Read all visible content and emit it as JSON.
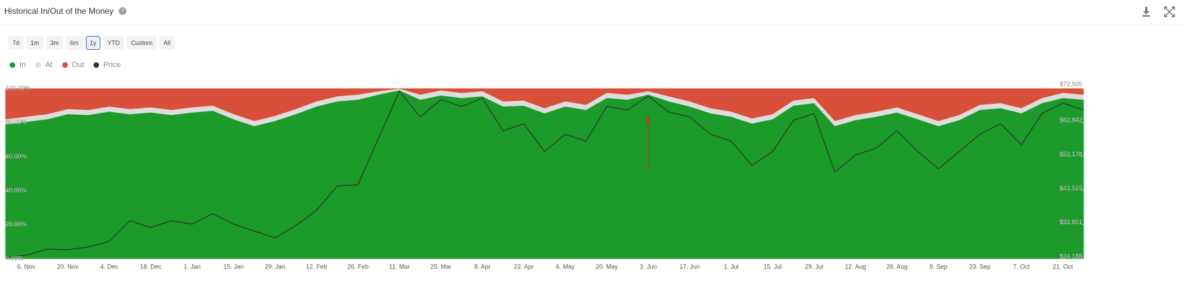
{
  "header": {
    "title": "Historical In/Out of the Money"
  },
  "range_buttons": [
    "7d",
    "1m",
    "3m",
    "6m",
    "1y",
    "YTD",
    "Custom",
    "All"
  ],
  "selected_range": "1y",
  "chart_data": {
    "type": "stacked_area",
    "categories": [
      null,
      "6. Nov",
      null,
      "20. Nov",
      null,
      "4. Dec",
      null,
      "18. Dec",
      null,
      "1. Jan",
      null,
      "15. Jan",
      null,
      "29. Jan",
      null,
      "12. Feb",
      null,
      "26. Feb",
      null,
      "11. Mar",
      null,
      "25. Mar",
      null,
      "8. Apr",
      null,
      "22. Apr",
      null,
      "6. May",
      null,
      "20. May",
      null,
      "3. Jun",
      null,
      "17. Jun",
      null,
      "1. Jul",
      null,
      "15. Jul",
      null,
      "29. Jul",
      null,
      "12. Aug",
      null,
      "26. Aug",
      null,
      "9. Sep",
      null,
      "23. Sep",
      null,
      "7. Oct",
      null,
      "21. Oct",
      null
    ],
    "series": [
      {
        "name": "In",
        "color": "#1c9b2a",
        "values": [
          79,
          80.5,
          82,
          85,
          84.5,
          86.5,
          85,
          86,
          84.5,
          86,
          87,
          82,
          78,
          81,
          85,
          89.5,
          92.5,
          93.5,
          96.5,
          99,
          93.5,
          96,
          94.5,
          95.5,
          89.5,
          90,
          85.5,
          89.5,
          87.5,
          94.5,
          93.5,
          96.5,
          92.5,
          89.5,
          85.5,
          83.5,
          79.5,
          82,
          90,
          91.5,
          78,
          81.5,
          83.5,
          86,
          82,
          78,
          81.5,
          87.5,
          88.5,
          85.5,
          91.5,
          94.5,
          93.5
        ]
      },
      {
        "name": "At",
        "color": "#dddddd",
        "values": [
          3,
          3,
          3,
          3,
          3,
          3,
          3,
          3,
          3,
          3,
          3,
          3,
          3,
          3,
          3,
          3,
          3,
          3,
          2,
          1,
          3,
          3,
          3,
          3,
          3,
          3,
          3,
          3,
          3,
          3,
          3,
          2,
          3,
          3,
          3,
          3,
          3,
          3,
          3,
          3,
          3,
          3,
          3,
          3,
          3,
          3,
          3,
          3,
          3,
          3,
          3,
          3,
          3
        ]
      },
      {
        "name": "Out",
        "color": "#d9503a",
        "values": [
          18,
          16.5,
          15,
          12,
          12.5,
          10.5,
          12,
          11,
          12.5,
          11,
          10,
          15,
          19,
          16,
          12,
          7.5,
          4.5,
          3.5,
          1.5,
          0,
          3.5,
          1,
          2.5,
          1.5,
          7.5,
          7,
          11.5,
          7.5,
          9.5,
          2.5,
          3.5,
          1.5,
          4.5,
          7.5,
          11.5,
          13.5,
          17.5,
          15,
          7,
          5.5,
          19,
          15.5,
          13.5,
          11,
          15,
          19,
          15.5,
          9.5,
          8.5,
          11.5,
          5.5,
          2.5,
          3.5
        ]
      },
      {
        "name": "Price",
        "color": "#333333",
        "axis": "y2",
        "values": [
          24581,
          25170,
          26938,
          26741,
          27527,
          29098,
          34990,
          33026,
          34990,
          34008,
          36954,
          34008,
          32044,
          30080,
          33615,
          37936,
          44810,
          45203,
          58558,
          71717,
          64454,
          69360,
          67396,
          69753,
          60522,
          62486,
          54630,
          59540,
          57576,
          67396,
          66414,
          70342,
          65825,
          64454,
          59540,
          57576,
          50702,
          54630,
          63468,
          65432,
          48738,
          53648,
          55612,
          60522,
          54630,
          49720,
          54630,
          59540,
          62486,
          56594,
          65432,
          68378,
          66414
        ]
      }
    ],
    "ylim": [
      0,
      100
    ],
    "yticks": [
      {
        "value": 0,
        "label": "0.00%"
      },
      {
        "value": 20,
        "label": "20.00%"
      },
      {
        "value": 40,
        "label": "40.00%"
      },
      {
        "value": 60,
        "label": "60.00%"
      },
      {
        "value": 80,
        "label": "80.00%"
      },
      {
        "value": 100,
        "label": "100.00%"
      }
    ],
    "y2lim": [
      24188,
      72505
    ],
    "y2ticks": [
      {
        "value": 24188,
        "label": "$24,188"
      },
      {
        "value": 33851,
        "label": "$33,851"
      },
      {
        "value": 43515,
        "label": "$43,515"
      },
      {
        "value": 53178,
        "label": "$53,178"
      },
      {
        "value": 62842,
        "label": "$62,842"
      },
      {
        "value": 72505,
        "label": "$72,505"
      }
    ]
  }
}
